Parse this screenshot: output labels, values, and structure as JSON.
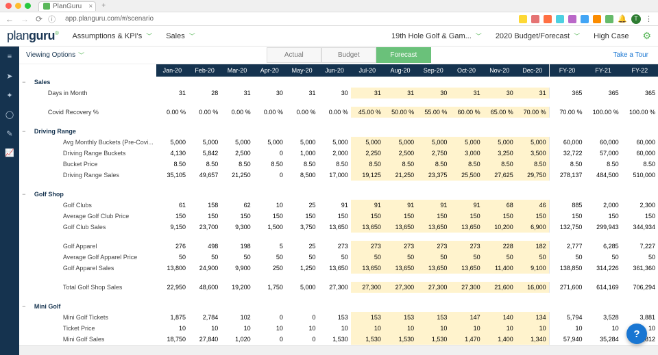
{
  "browser": {
    "tab_title": "PlanGuru",
    "url": "app.planguru.com/#/scenario",
    "mac_dots": [
      "#ff5f57",
      "#febc2e",
      "#28c840"
    ],
    "ext_colors": [
      "#fdd835",
      "#e57373",
      "#ff7043",
      "#4dd0e1",
      "#ba68c8",
      "#42a5f5",
      "#fb8c00",
      "#66bb6a"
    ],
    "avatar_letter": "T"
  },
  "header": {
    "logo_a": "plan",
    "logo_b": "guru",
    "assumptions_label": "Assumptions & KPI's",
    "section_label": "Sales",
    "company_label": "19th Hole Golf & Gam...",
    "budget_label": "2020 Budget/Forecast",
    "case_label": "High Case"
  },
  "toolbar": {
    "viewing_options": "Viewing Options",
    "tabs": [
      "Actual",
      "Budget",
      "Forecast"
    ],
    "active_tab": 2,
    "take_tour": "Take a Tour"
  },
  "columns": {
    "months": [
      "Jan-20",
      "Feb-20",
      "Mar-20",
      "Apr-20",
      "May-20",
      "Jun-20",
      "Jul-20",
      "Aug-20",
      "Sep-20",
      "Oct-20",
      "Nov-20",
      "Dec-20"
    ],
    "fy": [
      "FY-20",
      "FY-21",
      "FY-22"
    ]
  },
  "highlight_start": 6,
  "sections": [
    {
      "type": "group",
      "label": "Sales",
      "level": 0
    },
    {
      "type": "row",
      "label": "Days in Month",
      "level": 1,
      "m": [
        "31",
        "28",
        "31",
        "30",
        "31",
        "30",
        "31",
        "31",
        "30",
        "31",
        "30",
        "31"
      ],
      "fy": [
        "365",
        "365",
        "365"
      ]
    },
    {
      "type": "spacer"
    },
    {
      "type": "row",
      "label": "Covid Recovery %",
      "level": 1,
      "m": [
        "0.00 %",
        "0.00 %",
        "0.00 %",
        "0.00 %",
        "0.00 %",
        "0.00 %",
        "45.00 %",
        "50.00 %",
        "55.00 %",
        "60.00 %",
        "65.00 %",
        "70.00 %"
      ],
      "fy": [
        "70.00 %",
        "100.00 %",
        "100.00 %"
      ]
    },
    {
      "type": "spacer"
    },
    {
      "type": "group",
      "label": "Driving Range",
      "level": 0,
      "dash": true
    },
    {
      "type": "row",
      "label": "Avg Monthly Buckets (Pre-Covi...",
      "level": 2,
      "m": [
        "5,000",
        "5,000",
        "5,000",
        "5,000",
        "5,000",
        "5,000",
        "5,000",
        "5,000",
        "5,000",
        "5,000",
        "5,000",
        "5,000"
      ],
      "fy": [
        "60,000",
        "60,000",
        "60,000"
      ]
    },
    {
      "type": "row",
      "label": "Driving Range Buckets",
      "level": 2,
      "m": [
        "4,130",
        "5,842",
        "2,500",
        "0",
        "1,000",
        "2,000",
        "2,250",
        "2,500",
        "2,750",
        "3,000",
        "3,250",
        "3,500"
      ],
      "fy": [
        "32,722",
        "57,000",
        "60,000"
      ]
    },
    {
      "type": "row",
      "label": "Bucket Price",
      "level": 2,
      "m": [
        "8.50",
        "8.50",
        "8.50",
        "8.50",
        "8.50",
        "8.50",
        "8.50",
        "8.50",
        "8.50",
        "8.50",
        "8.50",
        "8.50"
      ],
      "fy": [
        "8.50",
        "8.50",
        "8.50"
      ]
    },
    {
      "type": "row",
      "label": "Driving Range Sales",
      "level": 2,
      "m": [
        "35,105",
        "49,657",
        "21,250",
        "0",
        "8,500",
        "17,000",
        "19,125",
        "21,250",
        "23,375",
        "25,500",
        "27,625",
        "29,750"
      ],
      "fy": [
        "278,137",
        "484,500",
        "510,000"
      ]
    },
    {
      "type": "spacer"
    },
    {
      "type": "group",
      "label": "Golf Shop",
      "level": 0,
      "dash": true
    },
    {
      "type": "row",
      "label": "Golf Clubs",
      "level": 2,
      "m": [
        "61",
        "158",
        "62",
        "10",
        "25",
        "91",
        "91",
        "91",
        "91",
        "91",
        "68",
        "46"
      ],
      "fy": [
        "885",
        "2,000",
        "2,300"
      ]
    },
    {
      "type": "row",
      "label": "Average Golf Club Price",
      "level": 2,
      "m": [
        "150",
        "150",
        "150",
        "150",
        "150",
        "150",
        "150",
        "150",
        "150",
        "150",
        "150",
        "150"
      ],
      "fy": [
        "150",
        "150",
        "150"
      ]
    },
    {
      "type": "row",
      "label": "Golf Club Sales",
      "level": 2,
      "m": [
        "9,150",
        "23,700",
        "9,300",
        "1,500",
        "3,750",
        "13,650",
        "13,650",
        "13,650",
        "13,650",
        "13,650",
        "10,200",
        "6,900"
      ],
      "fy": [
        "132,750",
        "299,943",
        "344,934"
      ]
    },
    {
      "type": "spacer"
    },
    {
      "type": "row",
      "label": "Golf Apparel",
      "level": 2,
      "m": [
        "276",
        "498",
        "198",
        "5",
        "25",
        "273",
        "273",
        "273",
        "273",
        "273",
        "228",
        "182"
      ],
      "fy": [
        "2,777",
        "6,285",
        "7,227"
      ]
    },
    {
      "type": "row",
      "label": "Average Golf Apparel Price",
      "level": 2,
      "m": [
        "50",
        "50",
        "50",
        "50",
        "50",
        "50",
        "50",
        "50",
        "50",
        "50",
        "50",
        "50"
      ],
      "fy": [
        "50",
        "50",
        "50"
      ]
    },
    {
      "type": "row",
      "label": "Golf Apparel Sales",
      "level": 2,
      "m": [
        "13,800",
        "24,900",
        "9,900",
        "250",
        "1,250",
        "13,650",
        "13,650",
        "13,650",
        "13,650",
        "13,650",
        "11,400",
        "9,100"
      ],
      "fy": [
        "138,850",
        "314,226",
        "361,360"
      ]
    },
    {
      "type": "spacer"
    },
    {
      "type": "row",
      "label": "Total Golf Shop Sales",
      "level": 2,
      "m": [
        "22,950",
        "48,600",
        "19,200",
        "1,750",
        "5,000",
        "27,300",
        "27,300",
        "27,300",
        "27,300",
        "27,300",
        "21,600",
        "16,000"
      ],
      "fy": [
        "271,600",
        "614,169",
        "706,294"
      ]
    },
    {
      "type": "spacer"
    },
    {
      "type": "group",
      "label": "Mini Golf",
      "level": 0,
      "dash": true
    },
    {
      "type": "row",
      "label": "Mini Golf Tickets",
      "level": 2,
      "m": [
        "1,875",
        "2,784",
        "102",
        "0",
        "0",
        "153",
        "153",
        "153",
        "153",
        "147",
        "140",
        "134"
      ],
      "fy": [
        "5,794",
        "3,528",
        "3,881"
      ]
    },
    {
      "type": "row",
      "label": "Ticket Price",
      "level": 2,
      "m": [
        "10",
        "10",
        "10",
        "10",
        "10",
        "10",
        "10",
        "10",
        "10",
        "10",
        "10",
        "10"
      ],
      "fy": [
        "10",
        "10",
        "10"
      ]
    },
    {
      "type": "row",
      "label": "Mini Golf Sales",
      "level": 2,
      "m": [
        "18,750",
        "27,840",
        "1,020",
        "0",
        "0",
        "1,530",
        "1,530",
        "1,530",
        "1,530",
        "1,470",
        "1,400",
        "1,340"
      ],
      "fy": [
        "57,940",
        "35,284",
        "38,812"
      ]
    }
  ],
  "colors": {
    "header_bg": "#15334f",
    "forecast_tab": "#6ac17a",
    "highlight": "#fff3cd"
  },
  "help_label": "?"
}
